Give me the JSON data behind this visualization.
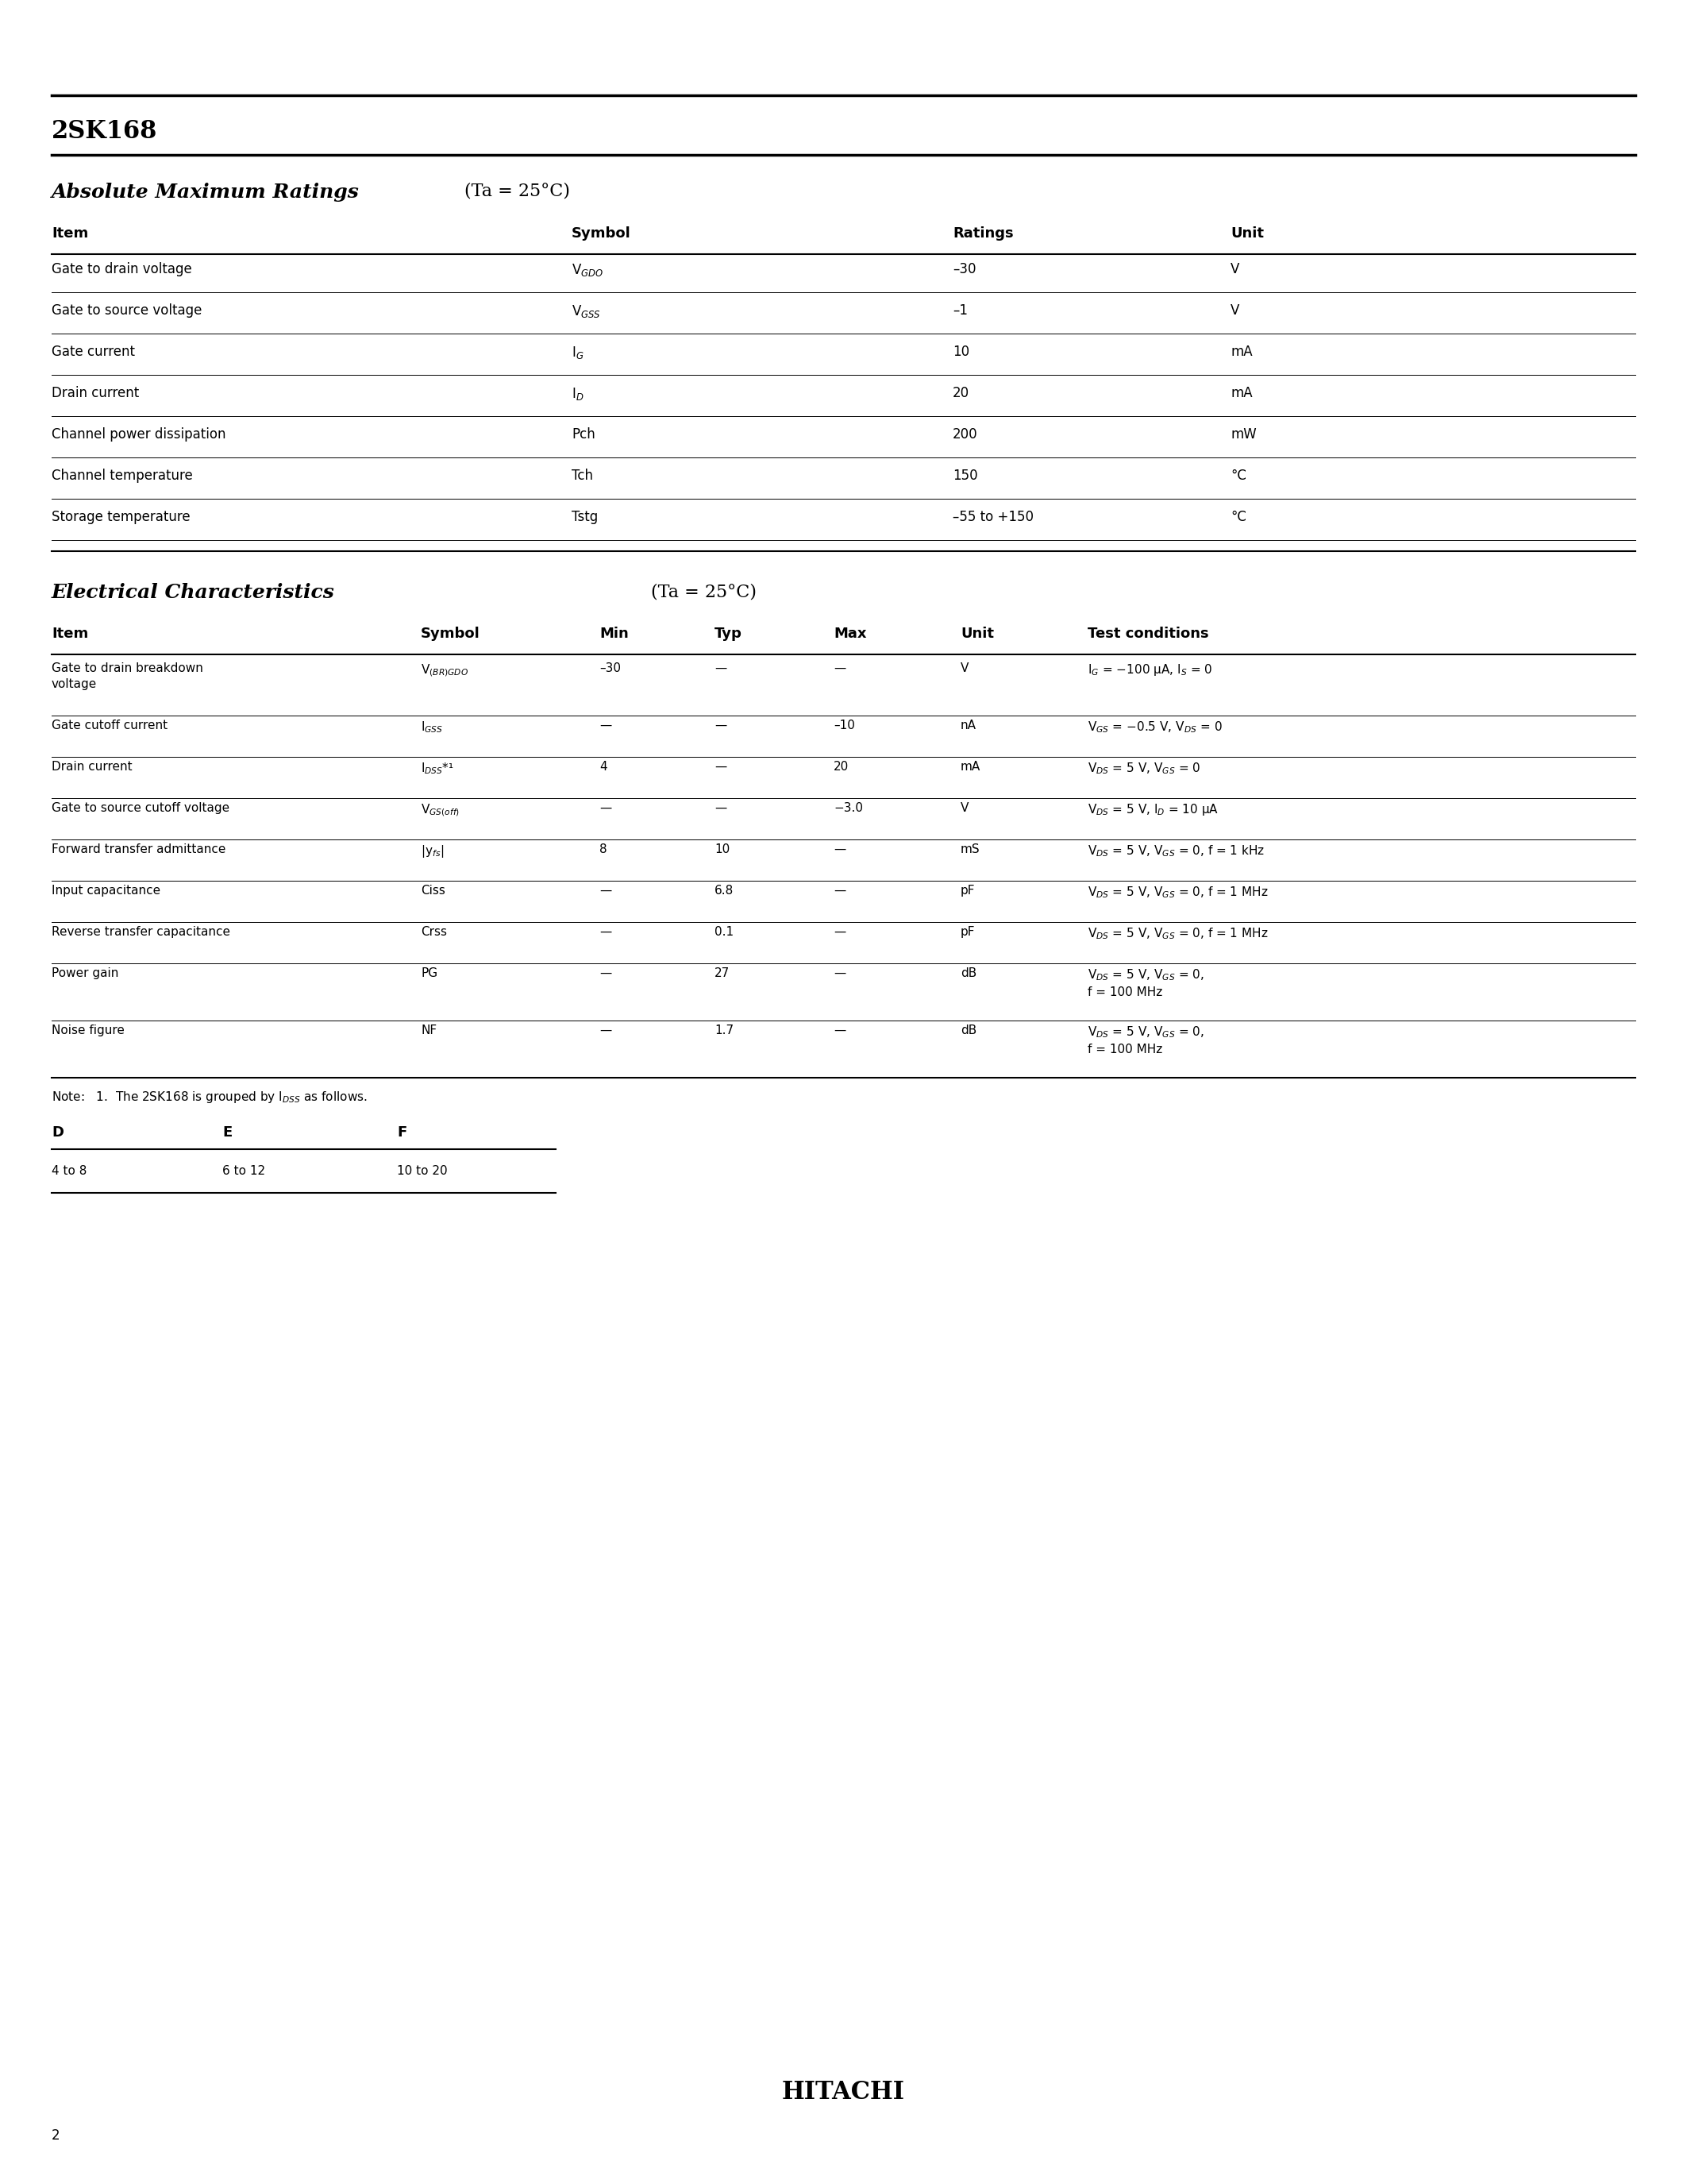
{
  "title": "2SK168",
  "section1_title": "Absolute Maximum Ratings",
  "section1_subtitle": "(Ta = 25°C)",
  "section1_headers": [
    "Item",
    "Symbol",
    "Ratings",
    "Unit"
  ],
  "section1_rows": [
    [
      "Gate to drain voltage",
      "V$_{GDO}$",
      "–30",
      "V"
    ],
    [
      "Gate to source voltage",
      "V$_{GSS}$",
      "–1",
      "V"
    ],
    [
      "Gate current",
      "I$_{G}$",
      "10",
      "mA"
    ],
    [
      "Drain current",
      "I$_{D}$",
      "20",
      "mA"
    ],
    [
      "Channel power dissipation",
      "Pch",
      "200",
      "mW"
    ],
    [
      "Channel temperature",
      "Tch",
      "150",
      "°C"
    ],
    [
      "Storage temperature",
      "Tstg",
      "–55 to +150",
      "°C"
    ]
  ],
  "section2_title": "Electrical Characteristics",
  "section2_subtitle": "(Ta = 25°C)",
  "section2_headers": [
    "Item",
    "Symbol",
    "Min",
    "Typ",
    "Max",
    "Unit",
    "Test conditions"
  ],
  "section2_rows": [
    [
      "Gate to drain breakdown\nvoltage",
      "V$_{(BR)GDO}$",
      "–30",
      "—",
      "—",
      "V",
      "I$_{G}$ = −100 μA, I$_{S}$ = 0"
    ],
    [
      "Gate cutoff current",
      "I$_{GSS}$",
      "—",
      "—",
      "–10",
      "nA",
      "V$_{GS}$ = −0.5 V, V$_{DS}$ = 0"
    ],
    [
      "Drain current",
      "I$_{DSS}$*¹",
      "4",
      "—",
      "20",
      "mA",
      "V$_{DS}$ = 5 V, V$_{GS}$ = 0"
    ],
    [
      "Gate to source cutoff voltage",
      "V$_{GS(off)}$",
      "—",
      "—",
      "−3.0",
      "V",
      "V$_{DS}$ = 5 V, I$_{D}$ = 10 μA"
    ],
    [
      "Forward transfer admittance",
      "|y$_{fs}$|",
      "8",
      "10",
      "—",
      "mS",
      "V$_{DS}$ = 5 V, V$_{GS}$ = 0, f = 1 kHz"
    ],
    [
      "Input capacitance",
      "Ciss",
      "—",
      "6.8",
      "—",
      "pF",
      "V$_{DS}$ = 5 V, V$_{GS}$ = 0, f = 1 MHz"
    ],
    [
      "Reverse transfer capacitance",
      "Crss",
      "—",
      "0.1",
      "—",
      "pF",
      "V$_{DS}$ = 5 V, V$_{GS}$ = 0, f = 1 MHz"
    ],
    [
      "Power gain",
      "PG",
      "—",
      "27",
      "—",
      "dB",
      "V$_{DS}$ = 5 V, V$_{GS}$ = 0,\nf = 100 MHz"
    ],
    [
      "Noise figure",
      "NF",
      "—",
      "1.7",
      "—",
      "dB",
      "V$_{DS}$ = 5 V, V$_{GS}$ = 0,\nf = 100 MHz"
    ]
  ],
  "note_text": "Note:   1.  The 2SK168 is grouped by I$_{DSS}$ as follows.",
  "grouping_headers": [
    "D",
    "E",
    "F"
  ],
  "grouping_values": [
    "4 to 8",
    "6 to 12",
    "10 to 20"
  ],
  "footer_brand": "HITACHI",
  "page_number": "2",
  "bg_color": "#ffffff",
  "text_color": "#000000",
  "line_color": "#000000"
}
